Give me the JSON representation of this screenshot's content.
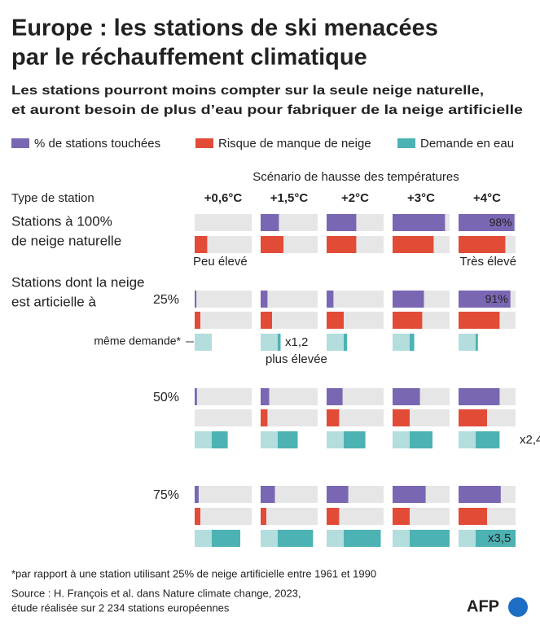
{
  "chart_data": {
    "type": "bar-grid",
    "title": [
      "Europe : les stations de ski menacées",
      "par le réchauffement climatique"
    ],
    "subtitle": [
      "Les stations pourront moins compter sur la seule neige naturelle,",
      "et auront besoin de plus d’eau pour fabriquer de la neige artificielle"
    ],
    "series": [
      {
        "name": "% de stations touchées",
        "color": "#7a67b3"
      },
      {
        "name": "Risque de manque de neige",
        "color": "#e24c37"
      },
      {
        "name": "Demande en eau",
        "color": "#4db2b3",
        "base_color": "#b4dddd"
      }
    ],
    "column_header": "Scénario de hausse des températures",
    "row_header": "Type de station",
    "categories": [
      "+0,6°C",
      "+1,5°C",
      "+2°C",
      "+3°C",
      "+4°C"
    ],
    "xlim": [
      0,
      100
    ],
    "section_label": [
      "Stations dont la neige",
      "est articielle à"
    ],
    "groups": [
      {
        "label": [
          "Stations à 100%",
          "de neige naturelle"
        ],
        "stations": [
          0,
          32,
          52,
          92,
          98
        ],
        "stations_value_labels": [
          null,
          null,
          null,
          null,
          "98%"
        ],
        "risk": [
          22,
          40,
          52,
          72,
          82
        ]
      },
      {
        "label": "25%",
        "stations": [
          3,
          12,
          12,
          55,
          91
        ],
        "stations_value_labels": [
          null,
          null,
          null,
          null,
          "91%"
        ],
        "risk": [
          10,
          20,
          30,
          52,
          72
        ],
        "water_base": [
          30,
          30,
          30,
          30,
          30
        ],
        "water_extra": [
          0,
          5,
          6,
          8,
          4
        ],
        "multiplier": "x1,2"
      },
      {
        "label": "50%",
        "stations": [
          4,
          15,
          28,
          48,
          72
        ],
        "risk": [
          0,
          12,
          22,
          30,
          50
        ],
        "water_base": [
          30,
          30,
          30,
          30,
          30
        ],
        "water_extra": [
          28,
          35,
          38,
          40,
          42
        ],
        "multiplier": "x2,4"
      },
      {
        "label": "75%",
        "stations": [
          7,
          25,
          38,
          58,
          74
        ],
        "risk": [
          10,
          10,
          22,
          30,
          50
        ],
        "water_base": [
          30,
          30,
          30,
          30,
          30
        ],
        "water_extra": [
          50,
          62,
          65,
          70,
          70
        ],
        "multiplier": "x3,5"
      }
    ],
    "risk_low": "Peu élevé",
    "risk_high": "Très élevé",
    "same_demand": "même demande*",
    "higher_demand": "plus élevée",
    "footnote": "*par rapport à une station utilisant 25% de neige artificielle entre 1961 et 1990",
    "source": [
      "Source : H. François et al. dans Nature climate change, 2023,",
      "étude réalisée sur 2 234 stations européennes"
    ],
    "logo": "AFP"
  }
}
